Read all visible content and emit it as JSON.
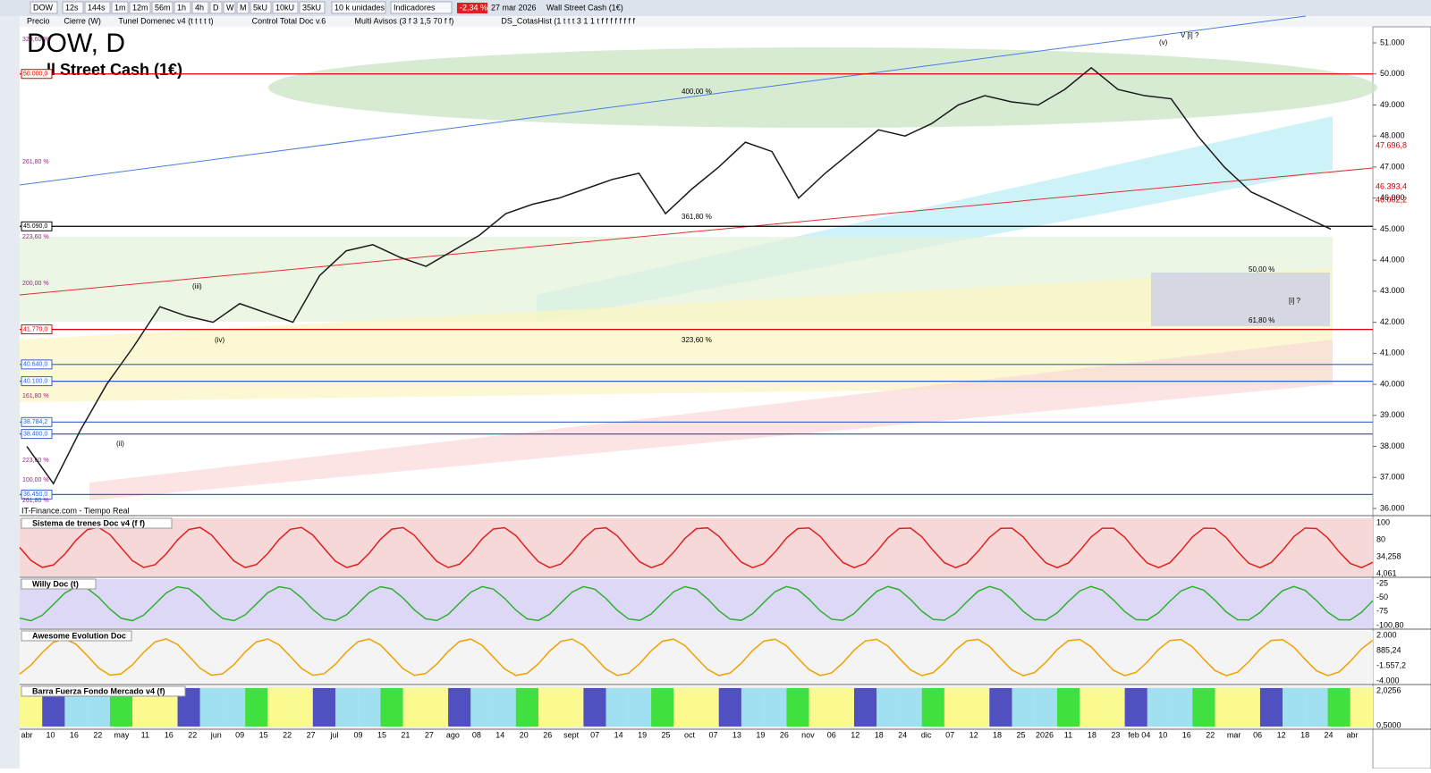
{
  "toolbar": {
    "symbol": "DOW",
    "timeframes": [
      "12s",
      "144s",
      "1m",
      "12m",
      "56m",
      "1h",
      "4h",
      "D",
      "W",
      "M",
      "5kU",
      "10kU",
      "35kU"
    ],
    "units": "10 k unidades",
    "indicators": "Indicadores",
    "change": "-2,34 %",
    "date": "27 mar 2026",
    "instrument": "Wall Street Cash (1€)"
  },
  "studies": [
    "Precio",
    "Cierre (W)",
    "Tunel Domenec v4 (t t t t t)",
    "Control Total Doc v.6",
    "Multi Avisos (3 f 3 1,5 70 f f)",
    "DS_CotasHist (1 t t t 3 1 1 t f f f f f f f f"
  ],
  "chart": {
    "title": "DOW, D",
    "subtitle": "ll Street Cash (1€)",
    "source": "IT-Finance.com - Tiempo Real",
    "close_prices": [
      38000,
      36800,
      38500,
      40000,
      41200,
      42500,
      42200,
      42000,
      42600,
      42300,
      42000,
      43500,
      44300,
      44500,
      44100,
      43800,
      44300,
      44800,
      45500,
      45800,
      46000,
      46300,
      46600,
      46800,
      45500,
      46300,
      47000,
      47800,
      47500,
      46000,
      46800,
      47500,
      48200,
      48000,
      48400,
      49000,
      49300,
      49100,
      49000,
      49500,
      50200,
      49500,
      49300,
      49200,
      48000,
      47000,
      46200,
      45800,
      45400,
      45000
    ],
    "price_ticks": [
      {
        "value": 51000,
        "label": "51.000"
      },
      {
        "value": 50000,
        "label": "50.000"
      },
      {
        "value": 49000,
        "label": "49.000"
      },
      {
        "value": 48000,
        "label": "48.000"
      },
      {
        "value": 47000,
        "label": "47.000"
      },
      {
        "value": 46000,
        "label": "46.000"
      },
      {
        "value": 45000,
        "label": "45.000"
      },
      {
        "value": 44000,
        "label": "44.000"
      },
      {
        "value": 43000,
        "label": "43.000"
      },
      {
        "value": 42000,
        "label": "42.000"
      },
      {
        "value": 41000,
        "label": "41.000"
      },
      {
        "value": 40000,
        "label": "40.000"
      },
      {
        "value": 39000,
        "label": "39.000"
      },
      {
        "value": 38000,
        "label": "38.000"
      },
      {
        "value": 37000,
        "label": "37.000"
      },
      {
        "value": 36000,
        "label": "36.000"
      }
    ],
    "level_labels": [
      {
        "value": 50000,
        "label": "50.000,0",
        "color": "#e00000"
      },
      {
        "value": 45090,
        "label": "45.090,0",
        "color": "#000000"
      },
      {
        "value": 41770,
        "label": "41.770,0",
        "color": "#e00000"
      },
      {
        "value": 40640,
        "label": "40.640,0",
        "color": "#3060d0"
      },
      {
        "value": 40100,
        "label": "40.100,0",
        "color": "#3060d0"
      },
      {
        "value": 38784.2,
        "label": "38.784,2",
        "color": "#3060d0"
      },
      {
        "value": 38400,
        "label": "38.400,0",
        "color": "#3060d0"
      },
      {
        "value": 36450,
        "label": "36.450,0",
        "color": "#3060d0"
      }
    ],
    "pct_labels": [
      "323,60 %",
      "261,80 %",
      "223,60 %",
      "200,00 %",
      "161,80 %",
      "223,60 %",
      "100,00 %",
      "261,80 %"
    ],
    "right_labels": [
      "47.696,8",
      "46.393,4",
      "46.002,2"
    ],
    "annotations": [
      "400,00 %",
      "361,80 %",
      "323,60 %",
      "50,00 %",
      "61,80 %",
      "(iii)",
      "(iv)",
      "(ii)",
      "(v)",
      "[i] ?",
      "V [i] ?"
    ],
    "dates": [
      "abr",
      "10",
      "16",
      "22",
      "may",
      "11",
      "16",
      "22",
      "jun",
      "09",
      "15",
      "22",
      "27",
      "jul",
      "09",
      "15",
      "21",
      "27",
      "ago",
      "08",
      "14",
      "20",
      "26",
      "sept",
      "07",
      "14",
      "19",
      "25",
      "oct",
      "07",
      "13",
      "19",
      "26",
      "nov",
      "06",
      "12",
      "18",
      "24",
      "dic",
      "07",
      "12",
      "18",
      "25",
      "2026",
      "11",
      "18",
      "23",
      "feb 04",
      "10",
      "16",
      "22",
      "mar",
      "06",
      "12",
      "18",
      "24",
      "abr"
    ]
  },
  "panels": [
    {
      "title": "Sistema de trenes Doc v4 (f f)",
      "labels": [
        "100",
        "80",
        "34,258",
        "4,061"
      ]
    },
    {
      "title": "Willy Doc (t)",
      "labels": [
        "-25",
        "-50",
        "-75",
        "-100,80"
      ]
    },
    {
      "title": "Awesome Evolution Doc",
      "labels": [
        "2.000",
        "885,24",
        "-1.557,2",
        "-4.000"
      ]
    },
    {
      "title": "Barra Fuerza Fondo Mercado v4 (f)",
      "labels": [
        "2,0256",
        "0,5000"
      ]
    }
  ]
}
